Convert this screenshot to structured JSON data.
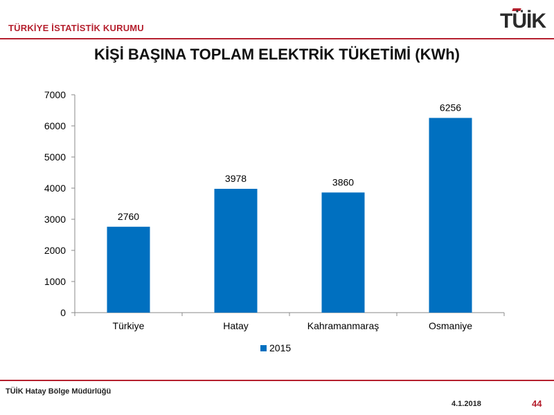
{
  "header": {
    "org_name": "TÜRKİYE İSTATİSTİK KURUMU",
    "logo_text": "TÜİK"
  },
  "title": "KİŞİ BAŞINA TOPLAM ELEKTRİK TÜKETİMİ (KWh)",
  "chart_data": {
    "type": "bar",
    "categories": [
      "Türkiye",
      "Hatay",
      "Kahramanmaraş",
      "Osmaniye"
    ],
    "series": [
      {
        "name": "2015",
        "values": [
          2760,
          3978,
          3860,
          6256
        ],
        "color": "#0070c0"
      }
    ],
    "ylim": [
      0,
      7000
    ],
    "yticks": [
      0,
      1000,
      2000,
      3000,
      4000,
      5000,
      6000,
      7000
    ],
    "grid": false,
    "legend_position": "bottom",
    "data_labels": true
  },
  "footer": {
    "name": "TÜİK Hatay Bölge Müdürlüğü",
    "date": "4.1.2018",
    "page_number": "44"
  },
  "colors": {
    "accent": "#b5202e",
    "bar": "#0070c0"
  }
}
